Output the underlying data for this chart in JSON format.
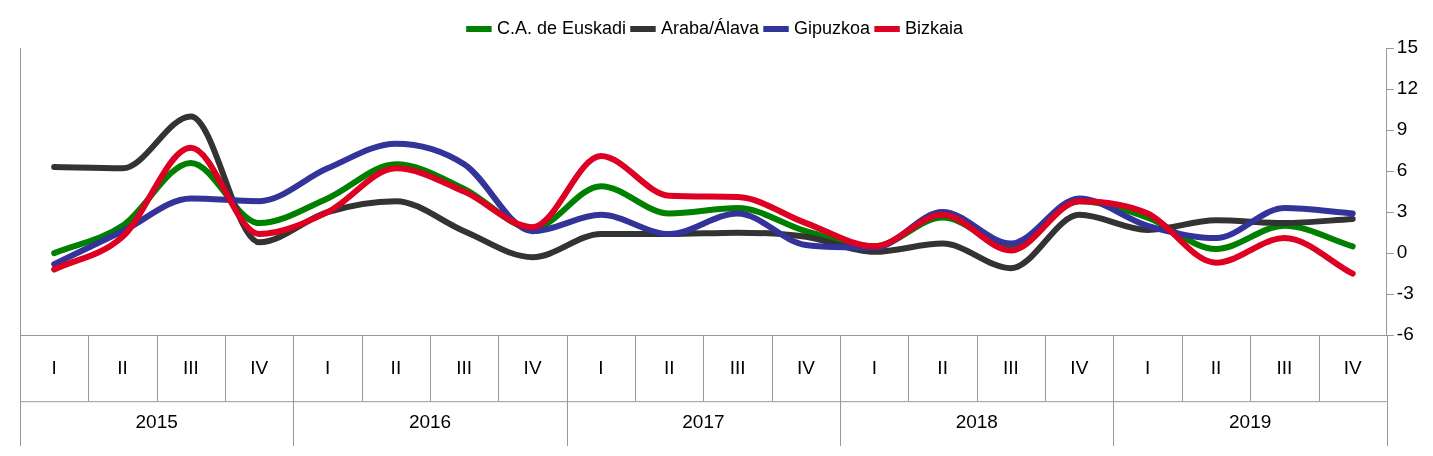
{
  "chart_data": {
    "type": "line",
    "categories": [
      "I",
      "II",
      "III",
      "IV",
      "I",
      "II",
      "III",
      "IV",
      "I",
      "II",
      "III",
      "IV",
      "I",
      "II",
      "III",
      "IV",
      "I",
      "II",
      "III",
      "IV"
    ],
    "series": [
      {
        "name": "C.A. de Euskadi",
        "color": "#008000",
        "values": [
          0,
          2.0,
          6.6,
          2.2,
          4.0,
          6.5,
          4.7,
          1.8,
          4.9,
          2.9,
          3.3,
          1.6,
          0.5,
          2.6,
          0.5,
          3.8,
          2.6,
          0.3,
          2.0,
          0.5
        ]
      },
      {
        "name": "Araba/Álava",
        "color": "#333333",
        "values": [
          6.3,
          6.2,
          10.0,
          0.8,
          3.0,
          3.8,
          1.6,
          -0.3,
          1.4,
          1.4,
          1.5,
          1.2,
          0.1,
          0.7,
          -1.1,
          2.8,
          1.7,
          2.4,
          2.2,
          2.5
        ]
      },
      {
        "name": "Gipuzkoa",
        "color": "#333399",
        "values": [
          -0.8,
          1.6,
          4.0,
          3.8,
          6.2,
          8.0,
          6.5,
          1.6,
          2.8,
          1.4,
          2.9,
          0.6,
          0.4,
          3.0,
          0.7,
          4.0,
          2.0,
          1.1,
          3.3,
          2.9
        ]
      },
      {
        "name": "Bizkaia",
        "color": "#dd0022",
        "values": [
          -1.2,
          1.2,
          7.7,
          1.4,
          3.0,
          6.2,
          4.5,
          1.9,
          7.1,
          4.2,
          4.1,
          2.2,
          0.5,
          2.8,
          0.2,
          3.8,
          2.9,
          -0.7,
          1.1,
          -1.5
        ]
      }
    ],
    "annotations": [
      "2015",
      "2016",
      "2017",
      "2018",
      "2019"
    ],
    "ylim": [
      -6,
      15
    ],
    "yticks": [
      -6,
      -3,
      0,
      3,
      6,
      9,
      12,
      15
    ],
    "grid": false,
    "legend": "top",
    "marker": "none",
    "line_style": "solid"
  }
}
